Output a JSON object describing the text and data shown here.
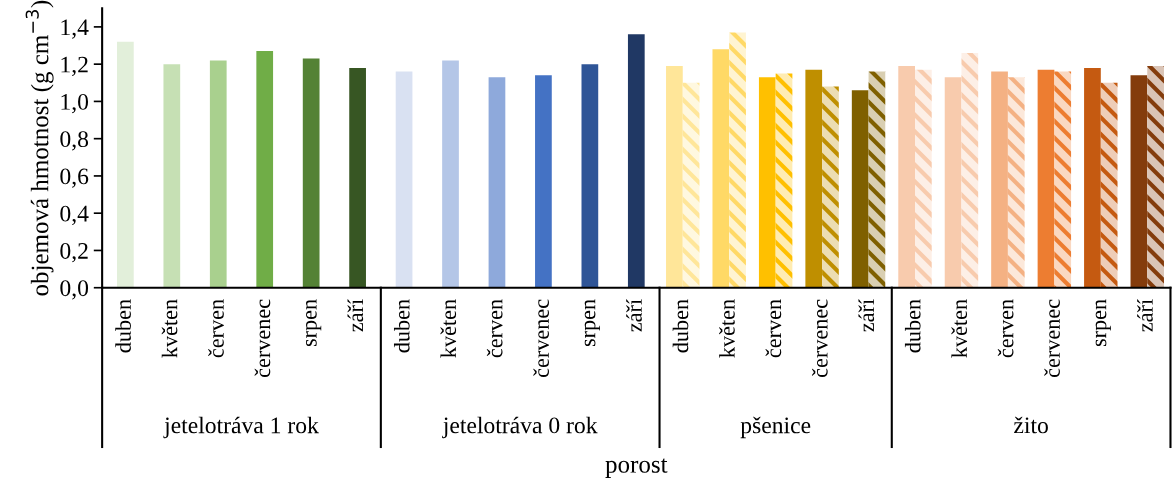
{
  "chart_data": {
    "type": "bar",
    "xlabel": "porost",
    "ylabel": "objemová hmotnost (g cm$^{−3}$)",
    "categories": [
      "duben",
      "květen",
      "červen",
      "červenec",
      "srpen",
      "září",
      "duben",
      "květen",
      "červen",
      "červenec",
      "srpen",
      "září",
      "duben",
      "květen",
      "červen",
      "červenec",
      "září",
      "duben",
      "květen",
      "červen",
      "červenec",
      "srpen",
      "září"
    ],
    "series": [
      {
        "colors": [
          "#e2efda",
          "#c6e0b4",
          "#a9d08e",
          "#70ad47",
          "#548235",
          "#375623",
          "#d9e1f2",
          "#b4c6e7",
          "#8ea9db",
          "#4472c4",
          "#2f5597",
          "#203864",
          "#ffe699",
          "#ffd966",
          "#ffc000",
          "#bf8f00",
          "#7f6000",
          "#f8cbad",
          "#f8cbad",
          "#f4b183",
          "#ed7d31",
          "#c55a11",
          "#843c0c"
        ],
        "values": [
          1.32,
          1.2,
          1.22,
          1.27,
          1.23,
          1.18,
          1.16,
          1.22,
          1.13,
          1.14,
          1.2,
          1.36,
          1.19,
          1.28,
          1.13,
          1.17,
          1.06,
          1.19,
          1.13,
          1.16,
          1.17,
          1.18,
          1.14
        ]
      },
      {
        "colors": [
          null,
          null,
          null,
          null,
          null,
          null,
          null,
          null,
          null,
          null,
          null,
          null,
          "#ffe699",
          "#ffd966",
          "#ffc000",
          "#bf8f00",
          "#7f6000",
          "#f8cbad",
          "#f8cbad",
          "#f4b183",
          "#ed7d31",
          "#c55a11",
          "#843c0c"
        ],
        "values": [
          null,
          null,
          null,
          null,
          null,
          null,
          null,
          null,
          null,
          null,
          null,
          null,
          1.1,
          1.37,
          1.15,
          1.08,
          1.16,
          1.17,
          1.26,
          1.13,
          1.16,
          1.1,
          1.19
        ]
      }
    ],
    "ylim": [
      0,
      1.5
    ],
    "yticks": [
      {
        "value": 0,
        "label": "0,0"
      },
      {
        "value": 0.2,
        "label": "0,2"
      },
      {
        "value": 0.4,
        "label": "0,4"
      },
      {
        "value": 0.6,
        "label": "0,6"
      },
      {
        "value": 0.8,
        "label": "0,8"
      },
      {
        "value": 1.0,
        "label": "1,0"
      },
      {
        "value": 1.2,
        "label": "1,2"
      },
      {
        "value": 1.4,
        "label": "1,4"
      }
    ],
    "grid": false,
    "legend": false,
    "annotations": [
      "jetelotráva 1 rok",
      "jetelotráva 0 rok",
      "pšenice",
      "žito"
    ]
  }
}
